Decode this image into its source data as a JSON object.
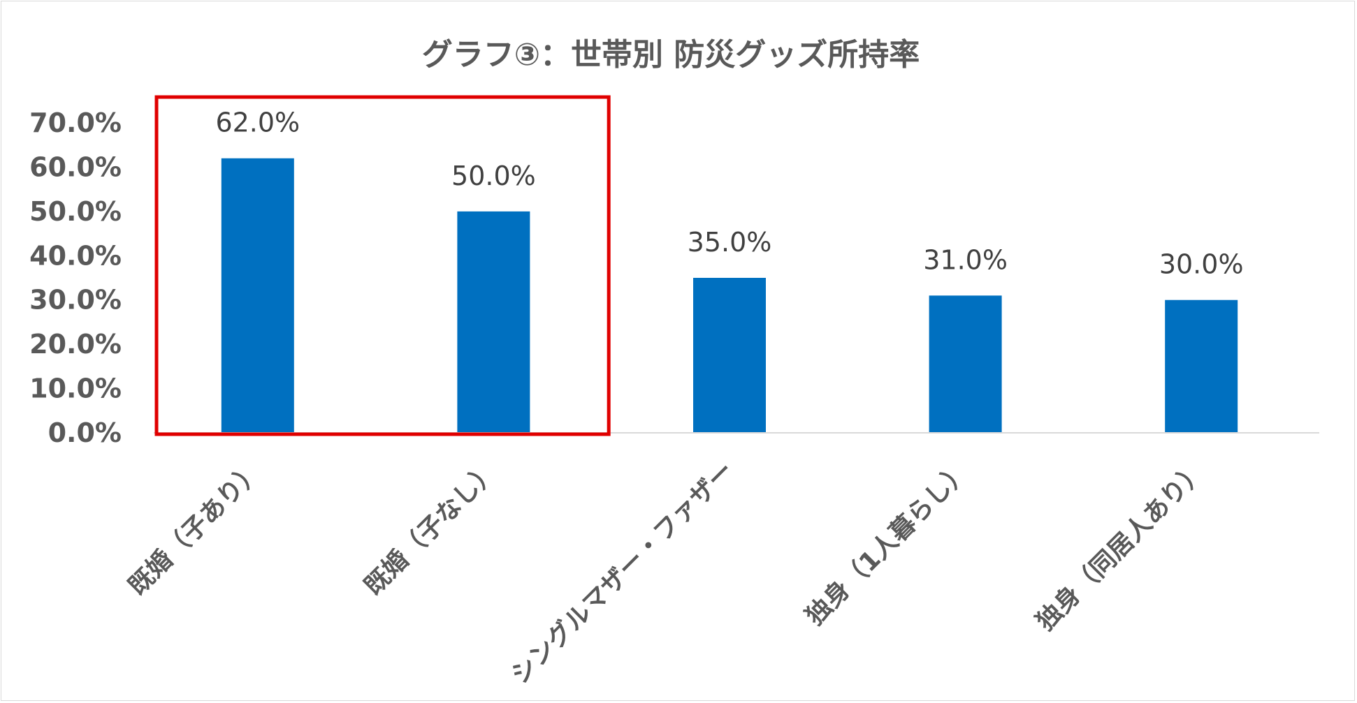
{
  "chart_data": {
    "type": "bar",
    "title": "グラフ③：世帯別 防災グッズ所持率",
    "categories": [
      "既婚（子あり）",
      "既婚（子なし）",
      "シングルマザー・ファザー",
      "独身（1人暮らし）",
      "独身（同居人あり）"
    ],
    "values": [
      62.0,
      50.0,
      35.0,
      31.0,
      30.0
    ],
    "data_labels": [
      "62.0%",
      "50.0%",
      "35.0%",
      "31.0%",
      "30.0%"
    ],
    "y_ticks": [
      0,
      10,
      20,
      30,
      40,
      50,
      60,
      70
    ],
    "y_tick_labels": [
      "0.0%",
      "10.0%",
      "20.0%",
      "30.0%",
      "40.0%",
      "50.0%",
      "60.0%",
      "70.0%"
    ],
    "ylim": [
      0,
      70
    ],
    "xlabel": "",
    "ylabel": "",
    "grid": false,
    "legend": "none",
    "bar_color": "#0070C0",
    "highlight": {
      "categories": [
        "既婚（子あり）",
        "既婚（子なし）"
      ],
      "color": "#E00000"
    }
  }
}
